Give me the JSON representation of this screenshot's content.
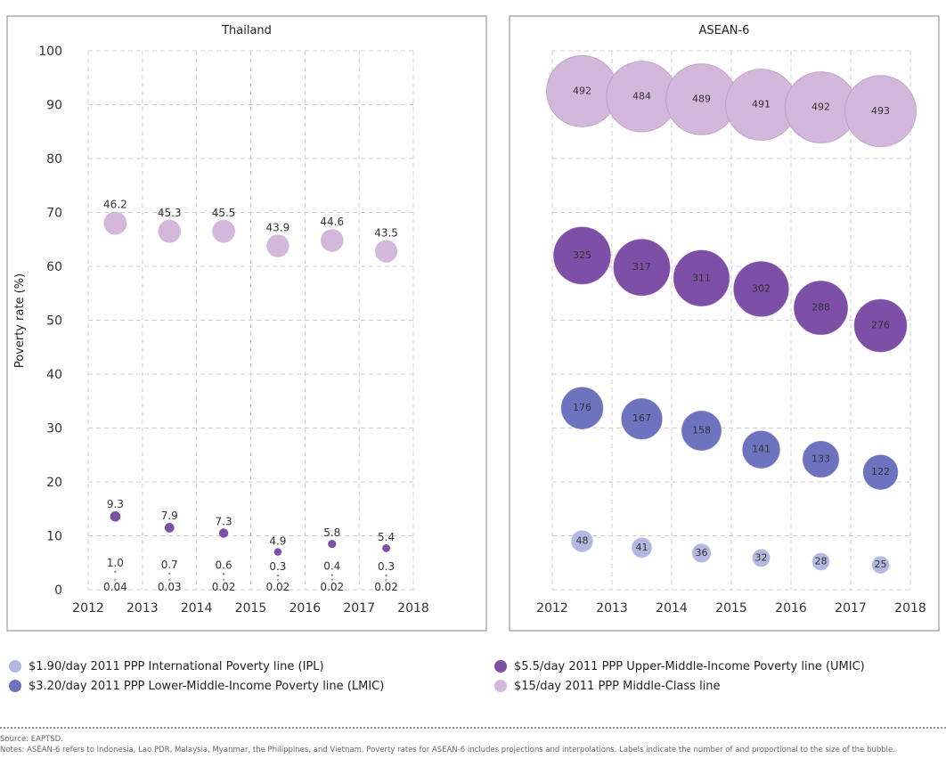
{
  "legend": [
    {
      "label": "$1.90/day 2011 PPP International Poverty line (IPL)",
      "color": "#b3b8e0"
    },
    {
      "label": "$3.20/day 2011 PPP Lower-Middle-Income Poverty line (LMIC)",
      "color": "#6d73bf"
    },
    {
      "label": "$5.5/day 2011 PPP Upper-Middle-Income Poverty line (UMIC)",
      "color": "#7e4fa6"
    },
    {
      "label": "$15/day 2011 PPP Middle-Class line",
      "color": "#d4b8dc"
    }
  ],
  "notes": {
    "source": "Source: EAPTSD.",
    "text": "Notes: ASEAN-6 refers to Indonesia, Lao PDR, Malaysia, Myanmar, the Philippines, and Vietnam. Poverty rates for ASEAN-6 includes projections and interpolations. Labels indicate the number of and proportional to the size of the bubble."
  },
  "chart_data": [
    {
      "type": "scatter",
      "title": "Thailand",
      "xlabel": "",
      "ylabel": "Poverty rate (%)",
      "xlim": [
        2012,
        2018
      ],
      "ylim": [
        0,
        100
      ],
      "x_ticks": [
        "2012",
        "2013",
        "2014",
        "2015",
        "2016",
        "2017",
        "2018"
      ],
      "y_ticks": [
        "0",
        "10",
        "20",
        "30",
        "40",
        "50",
        "60",
        "70",
        "80",
        "90",
        "100"
      ],
      "grid": true,
      "series": [
        {
          "x": [
            2012.5,
            2013.5,
            2014.5,
            2015.5,
            2016.5,
            2017.5
          ],
          "y": [
            0.04,
            0.03,
            0.02,
            0.02,
            0.02,
            0.02
          ],
          "labels": [
            "0.04",
            "0.03",
            "0.02",
            "0.02",
            "0.02",
            "0.02"
          ],
          "color": "#b3b8e0"
        },
        {
          "x": [
            2012.5,
            2013.5,
            2014.5,
            2015.5,
            2016.5,
            2017.5
          ],
          "y": [
            1.0,
            0.7,
            0.6,
            0.3,
            0.4,
            0.3
          ],
          "labels": [
            "1.0",
            "0.7",
            "0.6",
            "0.3",
            "0.4",
            "0.3"
          ],
          "color": "#6d73bf"
        },
        {
          "x": [
            2012.5,
            2013.5,
            2014.5,
            2015.5,
            2016.5,
            2017.5
          ],
          "y": [
            13.6,
            11.5,
            10.5,
            7.0,
            8.5,
            7.7
          ],
          "labels": [
            "9.3",
            "7.9",
            "7.3",
            "4.9",
            "5.8",
            "5.4"
          ],
          "sizes": [
            9.3,
            7.9,
            7.3,
            4.9,
            5.8,
            5.4
          ],
          "color": "#7e4fa6"
        },
        {
          "x": [
            2012.5,
            2013.5,
            2014.5,
            2015.5,
            2016.5,
            2017.5
          ],
          "y": [
            68.0,
            66.5,
            66.5,
            63.8,
            64.8,
            62.8
          ],
          "labels": [
            "46.2",
            "45.3",
            "45.5",
            "43.9",
            "44.6",
            "43.5"
          ],
          "sizes": [
            46.2,
            45.3,
            45.5,
            43.9,
            44.6,
            43.5
          ],
          "color": "#d4b8dc"
        }
      ]
    },
    {
      "type": "scatter",
      "title": "ASEAN-6",
      "xlabel": "",
      "ylabel": "",
      "xlim": [
        2012,
        2018
      ],
      "ylim": [
        0,
        100
      ],
      "x_ticks": [
        "2012",
        "2013",
        "2014",
        "2015",
        "2016",
        "2017",
        "2018"
      ],
      "grid": true,
      "series": [
        {
          "x": [
            2012.5,
            2013.5,
            2014.5,
            2015.5,
            2016.5,
            2017.5
          ],
          "y": [
            9.0,
            7.8,
            6.8,
            5.9,
            5.2,
            4.6
          ],
          "labels": [
            "48",
            "41",
            "36",
            "32",
            "28",
            "25"
          ],
          "sizes": [
            48,
            41,
            36,
            32,
            28,
            25
          ],
          "color": "#b3b8e0"
        },
        {
          "x": [
            2012.5,
            2013.5,
            2014.5,
            2015.5,
            2016.5,
            2017.5
          ],
          "y": [
            33.7,
            31.7,
            29.5,
            26.0,
            24.2,
            21.8
          ],
          "labels": [
            "176",
            "167",
            "158",
            "141",
            "133",
            "122"
          ],
          "sizes": [
            176,
            167,
            158,
            141,
            133,
            122
          ],
          "color": "#6d73bf"
        },
        {
          "x": [
            2012.5,
            2013.5,
            2014.5,
            2015.5,
            2016.5,
            2017.5
          ],
          "y": [
            62.0,
            59.8,
            57.8,
            55.8,
            52.3,
            49.0
          ],
          "labels": [
            "325",
            "317",
            "311",
            "302",
            "288",
            "276"
          ],
          "sizes": [
            325,
            317,
            311,
            302,
            288,
            276
          ],
          "color": "#7e4fa6"
        },
        {
          "x": [
            2012.5,
            2013.5,
            2014.5,
            2015.5,
            2016.5,
            2017.5
          ],
          "y": [
            92.5,
            91.5,
            91.0,
            90.0,
            89.5,
            88.8
          ],
          "labels": [
            "492",
            "484",
            "489",
            "491",
            "492",
            "493"
          ],
          "sizes": [
            492,
            484,
            489,
            491,
            492,
            493
          ],
          "color": "#d4b8dc"
        }
      ]
    }
  ]
}
